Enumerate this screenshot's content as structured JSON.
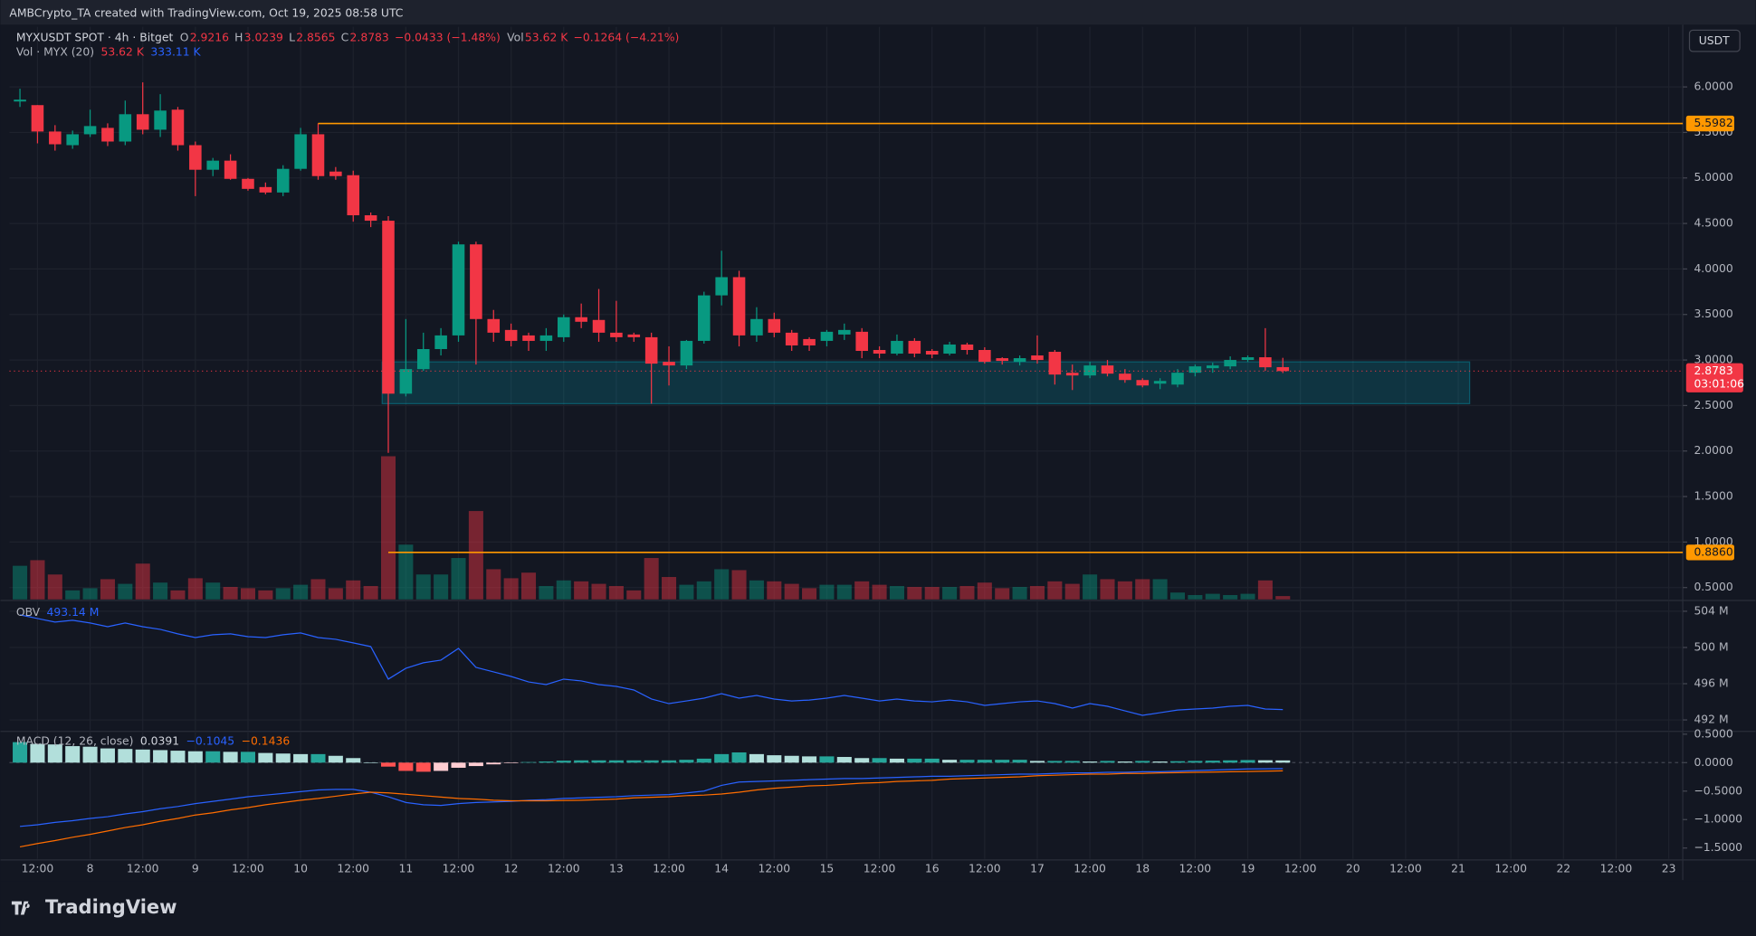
{
  "header": {
    "attribution": "AMBCrypto_TA created with TradingView.com, Oct 19, 2025 08:58 UTC",
    "currency_button": "USDT",
    "logo": "TradingView"
  },
  "chart_data": [
    {
      "type": "candlestick",
      "legend": {
        "symbol": "MYXUSDT SPOT · 4h · Bitget",
        "o": "O",
        "h": "H",
        "l": "L",
        "c": "C",
        "change": "−0.0433 (−1.48%)",
        "vol": "Vol",
        "vol_value": "53.62 K",
        "vol_change": "−0.1264 (−4.21%)",
        "vol_indicator": "Vol · MYX (20)",
        "vol_ma": "333.11 K"
      },
      "countdown": "03:01:06",
      "up_color": "#089981",
      "down_color": "#f23645",
      "open": [
        5.84,
        5.8,
        5.51,
        5.36,
        5.48,
        5.55,
        5.4,
        5.7,
        5.53,
        5.75,
        5.36,
        5.09,
        5.19,
        4.99,
        4.9,
        4.84,
        5.1,
        5.48,
        5.07,
        5.03,
        4.59,
        4.53,
        2.63,
        2.9,
        3.12,
        3.27,
        4.27,
        3.45,
        3.33,
        3.27,
        3.21,
        3.25,
        3.47,
        3.44,
        3.3,
        3.28,
        3.25,
        2.98,
        2.94,
        3.21,
        3.71,
        3.91,
        3.27,
        3.45,
        3.3,
        3.23,
        3.21,
        3.28,
        3.31,
        3.11,
        3.07,
        3.21,
        3.1,
        3.07,
        3.17,
        3.11,
        3.02,
        2.98,
        3.05,
        3.09,
        2.86,
        2.83,
        2.94,
        2.85,
        2.78,
        2.74,
        2.73,
        2.86,
        2.91,
        2.93,
        3.0,
        3.03,
        2.9216
      ],
      "high": [
        5.98,
        5.8,
        5.58,
        5.52,
        5.75,
        5.6,
        5.85,
        6.05,
        5.92,
        5.78,
        5.4,
        5.22,
        5.26,
        5.0,
        4.95,
        5.14,
        5.55,
        5.6,
        5.12,
        5.08,
        4.62,
        4.58,
        3.45,
        3.3,
        3.35,
        4.3,
        4.3,
        3.55,
        3.4,
        3.3,
        3.35,
        3.5,
        3.62,
        3.78,
        3.65,
        3.3,
        3.3,
        3.15,
        3.22,
        3.75,
        4.2,
        3.98,
        3.58,
        3.52,
        3.33,
        3.25,
        3.33,
        3.4,
        3.35,
        3.15,
        3.28,
        3.24,
        3.12,
        3.2,
        3.19,
        3.14,
        3.03,
        3.05,
        3.27,
        3.11,
        2.95,
        2.98,
        3.0,
        2.9,
        2.8,
        2.8,
        2.9,
        2.95,
        2.97,
        3.04,
        3.05,
        3.35,
        3.0239
      ],
      "low": [
        5.78,
        5.38,
        5.3,
        5.32,
        5.45,
        5.35,
        5.36,
        5.48,
        5.45,
        5.3,
        4.8,
        5.02,
        4.98,
        4.86,
        4.82,
        4.8,
        5.08,
        4.98,
        4.98,
        4.52,
        4.46,
        1.98,
        2.6,
        2.88,
        3.05,
        3.2,
        2.95,
        3.2,
        3.15,
        3.1,
        3.1,
        3.2,
        3.35,
        3.2,
        3.2,
        3.2,
        2.52,
        2.72,
        2.9,
        3.18,
        3.6,
        3.15,
        3.2,
        3.25,
        3.1,
        3.1,
        3.15,
        3.22,
        3.02,
        3.02,
        3.05,
        3.03,
        3.02,
        3.05,
        3.06,
        2.96,
        2.95,
        2.94,
        2.96,
        2.73,
        2.67,
        2.8,
        2.82,
        2.75,
        2.7,
        2.68,
        2.7,
        2.82,
        2.86,
        2.9,
        2.98,
        2.88,
        2.8565
      ],
      "close": [
        5.86,
        5.51,
        5.37,
        5.48,
        5.57,
        5.4,
        5.7,
        5.53,
        5.74,
        5.36,
        5.09,
        5.19,
        4.99,
        4.88,
        4.84,
        5.1,
        5.48,
        5.02,
        5.02,
        4.59,
        4.53,
        2.63,
        2.9,
        3.12,
        3.27,
        4.27,
        3.45,
        3.3,
        3.21,
        3.21,
        3.27,
        3.47,
        3.42,
        3.3,
        3.25,
        3.25,
        2.96,
        2.94,
        3.21,
        3.71,
        3.91,
        3.27,
        3.45,
        3.3,
        3.16,
        3.16,
        3.31,
        3.33,
        3.1,
        3.07,
        3.21,
        3.07,
        3.06,
        3.17,
        3.11,
        2.98,
        2.99,
        3.02,
        3.0,
        2.84,
        2.83,
        2.94,
        2.85,
        2.78,
        2.72,
        2.77,
        2.86,
        2.93,
        2.94,
        3.0,
        3.03,
        2.92,
        2.8783
      ],
      "volume": [
        540000,
        630000,
        400000,
        145000,
        180000,
        325000,
        250000,
        575000,
        270000,
        145000,
        340000,
        270000,
        200000,
        180000,
        145000,
        180000,
        235000,
        325000,
        180000,
        305000,
        215000,
        2300000,
        880000,
        400000,
        400000,
        665000,
        1420000,
        485000,
        340000,
        430000,
        215000,
        305000,
        290000,
        250000,
        215000,
        145000,
        665000,
        360000,
        235000,
        290000,
        485000,
        470000,
        305000,
        290000,
        250000,
        180000,
        235000,
        235000,
        290000,
        235000,
        215000,
        200000,
        200000,
        200000,
        215000,
        270000,
        180000,
        200000,
        215000,
        290000,
        250000,
        400000,
        325000,
        290000,
        325000,
        325000,
        110000,
        70000,
        90000,
        70000,
        90000,
        305000,
        53620
      ],
      "levels": [
        {
          "value": 5.5982,
          "color": "#ff9800"
        },
        {
          "value": {
            "value": 0.886,
            "label": "0.8860"
          },
          "color": "#ff9800"
        }
      ],
      "zone": {
        "low": 2.52,
        "high": 2.98,
        "color": "#00bcd4"
      },
      "ylim": [
        0.37,
        6.66
      ],
      "yticks": [
        {
          "value": 0.5,
          "label": "0.5000"
        },
        {
          "value": 1,
          "label": "1.0000"
        },
        {
          "value": 1.5,
          "label": "1.5000"
        },
        {
          "value": 2,
          "label": "2.0000"
        },
        {
          "value": 2.5,
          "label": "2.5000"
        },
        {
          "value": 3,
          "label": "3.0000"
        },
        {
          "value": 3.5,
          "label": "3.5000"
        },
        {
          "value": 4,
          "label": "4.0000"
        },
        {
          "value": 4.5,
          "label": "4.5000"
        },
        {
          "value": 5,
          "label": "5.0000"
        },
        {
          "value": 5.5,
          "label": "5.5000"
        },
        {
          "value": 6,
          "label": "6.0000"
        }
      ],
      "xlim": [
        -0.6,
        94.8
      ],
      "xticks": [
        {
          "value": 1,
          "label": "12:00"
        },
        {
          "value": 4,
          "label": "8"
        },
        {
          "value": 7,
          "label": "12:00"
        },
        {
          "value": 10,
          "label": "9"
        },
        {
          "value": 13,
          "label": "12:00"
        },
        {
          "value": 16,
          "label": "10"
        },
        {
          "value": 19,
          "label": "12:00"
        },
        {
          "value": 22,
          "label": "11"
        },
        {
          "value": 25,
          "label": "12:00"
        },
        {
          "value": 28,
          "label": "12"
        },
        {
          "value": 31,
          "label": "12:00"
        },
        {
          "value": 34,
          "label": "13"
        },
        {
          "value": 37,
          "label": "12:00"
        },
        {
          "value": 40,
          "label": "14"
        },
        {
          "value": 43,
          "label": "12:00"
        },
        {
          "value": 46,
          "label": "15"
        },
        {
          "value": 49,
          "label": "12:00"
        },
        {
          "value": 52,
          "label": "16"
        },
        {
          "value": 55,
          "label": "12:00"
        },
        {
          "value": 58,
          "label": "17"
        },
        {
          "value": 61,
          "label": "12:00"
        },
        {
          "value": 64,
          "label": "18"
        },
        {
          "value": 67,
          "label": "12:00"
        },
        {
          "value": 70,
          "label": "19"
        },
        {
          "value": 73,
          "label": "12:00"
        },
        {
          "value": 76,
          "label": "20"
        },
        {
          "value": 79,
          "label": "12:00"
        },
        {
          "value": 82,
          "label": "21"
        },
        {
          "value": 85,
          "label": "12:00"
        },
        {
          "value": 88,
          "label": "22"
        },
        {
          "value": 91,
          "label": "12:00"
        },
        {
          "value": 94,
          "label": "23"
        }
      ],
      "grid": true
    },
    {
      "type": "line",
      "legend": {
        "name": "OBV",
        "value": "493.14 M"
      },
      "color": "#2962ff",
      "values": [
        503.6,
        503.2,
        502.8,
        503.0,
        502.7,
        502.3,
        502.7,
        502.3,
        502.0,
        501.5,
        501.1,
        501.4,
        501.5,
        501.2,
        501.1,
        501.4,
        501.6,
        501.1,
        500.9,
        500.5,
        500.1,
        496.5,
        497.7,
        498.3,
        498.6,
        499.9,
        497.8,
        497.3,
        496.8,
        496.2,
        495.9,
        496.5,
        496.3,
        495.9,
        495.7,
        495.3,
        494.3,
        493.8,
        494.1,
        494.4,
        494.9,
        494.4,
        494.7,
        494.3,
        494.1,
        494.2,
        494.4,
        494.7,
        494.4,
        494.1,
        494.3,
        494.1,
        494.0,
        494.2,
        494.0,
        493.6,
        493.8,
        494.0,
        494.1,
        493.8,
        493.3,
        493.8,
        493.5,
        493.0,
        492.5,
        492.8,
        493.1,
        493.2,
        493.3,
        493.5,
        493.6,
        493.2,
        493.14
      ],
      "ylim": [
        490.86,
        505.06
      ],
      "yticks": [
        {
          "value": 492,
          "label": "492 M"
        },
        {
          "value": 496,
          "label": "496 M"
        },
        {
          "value": 500,
          "label": "500 M"
        },
        {
          "value": 504,
          "label": "504 M"
        }
      ]
    },
    {
      "type": "macd",
      "legend": {
        "name": "MACD (12, 26, close)",
        "histogram": "0.0391",
        "macd": "−0.1045",
        "signal": "−0.1436"
      },
      "macd_color": "#2962ff",
      "signal_color": "#ff6d00",
      "histogram_colors": {
        "up_rising": "#26a69a",
        "up_falling": "#b2dfdb",
        "down_falling": "#ff5252",
        "down_rising": "#ffcdd2"
      },
      "macd": [
        -1.12,
        -1.09,
        -1.05,
        -1.02,
        -0.98,
        -0.95,
        -0.9,
        -0.86,
        -0.81,
        -0.77,
        -0.72,
        -0.68,
        -0.64,
        -0.6,
        -0.57,
        -0.54,
        -0.51,
        -0.48,
        -0.47,
        -0.47,
        -0.52,
        -0.6,
        -0.7,
        -0.74,
        -0.75,
        -0.72,
        -0.7,
        -0.69,
        -0.68,
        -0.66,
        -0.65,
        -0.63,
        -0.62,
        -0.61,
        -0.6,
        -0.58,
        -0.57,
        -0.56,
        -0.53,
        -0.5,
        -0.4,
        -0.34,
        -0.33,
        -0.32,
        -0.31,
        -0.3,
        -0.29,
        -0.28,
        -0.28,
        -0.27,
        -0.26,
        -0.25,
        -0.24,
        -0.24,
        -0.23,
        -0.22,
        -0.21,
        -0.2,
        -0.2,
        -0.19,
        -0.18,
        -0.18,
        -0.17,
        -0.17,
        -0.16,
        -0.16,
        -0.15,
        -0.14,
        -0.13,
        -0.12,
        -0.11,
        -0.108,
        -0.1045
      ],
      "signal": [
        -1.48,
        -1.42,
        -1.37,
        -1.31,
        -1.26,
        -1.2,
        -1.14,
        -1.09,
        -1.03,
        -0.98,
        -0.92,
        -0.88,
        -0.83,
        -0.79,
        -0.74,
        -0.7,
        -0.66,
        -0.63,
        -0.59,
        -0.55,
        -0.52,
        -0.53,
        -0.555,
        -0.58,
        -0.605,
        -0.63,
        -0.64,
        -0.66,
        -0.67,
        -0.67,
        -0.67,
        -0.665,
        -0.66,
        -0.65,
        -0.64,
        -0.62,
        -0.61,
        -0.6,
        -0.58,
        -0.57,
        -0.55,
        -0.52,
        -0.48,
        -0.45,
        -0.43,
        -0.41,
        -0.4,
        -0.38,
        -0.36,
        -0.35,
        -0.33,
        -0.32,
        -0.31,
        -0.29,
        -0.28,
        -0.27,
        -0.26,
        -0.25,
        -0.23,
        -0.22,
        -0.21,
        -0.2,
        -0.2,
        -0.19,
        -0.19,
        -0.18,
        -0.175,
        -0.17,
        -0.165,
        -0.16,
        -0.155,
        -0.15,
        -0.1436
      ],
      "histogram": [
        0.36,
        0.33,
        0.32,
        0.29,
        0.28,
        0.25,
        0.24,
        0.23,
        0.22,
        0.21,
        0.2,
        0.2,
        0.19,
        0.19,
        0.17,
        0.16,
        0.15,
        0.15,
        0.12,
        0.08,
        0.0,
        -0.07,
        -0.145,
        -0.16,
        -0.145,
        -0.09,
        -0.06,
        -0.03,
        -0.01,
        0.01,
        0.02,
        0.035,
        0.04,
        0.04,
        0.04,
        0.04,
        0.04,
        0.04,
        0.05,
        0.07,
        0.15,
        0.18,
        0.15,
        0.13,
        0.12,
        0.11,
        0.11,
        0.1,
        0.08,
        0.08,
        0.07,
        0.07,
        0.07,
        0.05,
        0.05,
        0.05,
        0.05,
        0.05,
        0.03,
        0.03,
        0.03,
        0.02,
        0.03,
        0.02,
        0.03,
        0.02,
        0.025,
        0.03,
        0.035,
        0.04,
        0.045,
        0.042,
        0.0391
      ],
      "ylim": [
        -1.69,
        0.53
      ],
      "yticks": [
        {
          "value": -1.5,
          "label": "−1.5000"
        },
        {
          "value": -1,
          "label": "−1.0000"
        },
        {
          "value": -0.5,
          "label": "−0.5000"
        },
        {
          "value": 0,
          "label": "0.0000"
        },
        {
          "value": 0.5,
          "label": "0.5000"
        }
      ]
    }
  ]
}
